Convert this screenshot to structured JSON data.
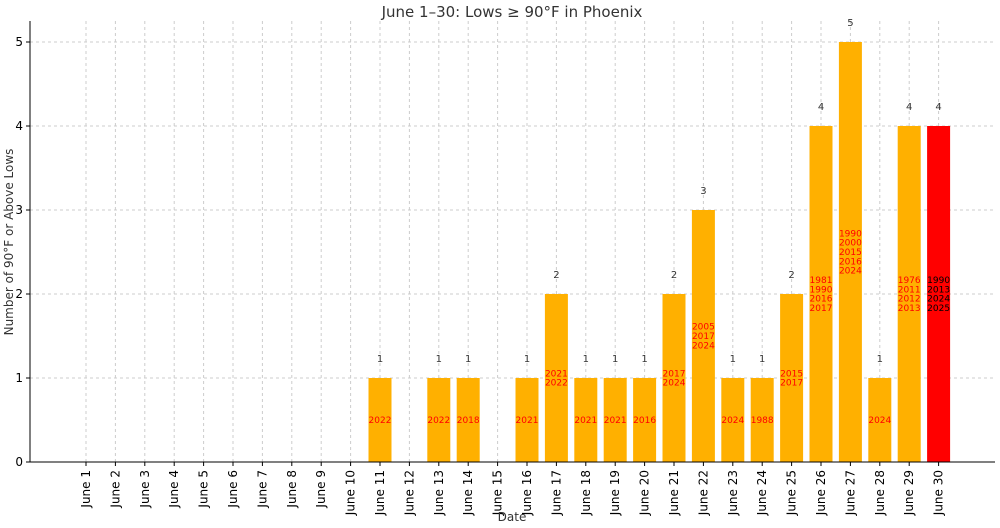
{
  "chart_data": {
    "type": "bar",
    "title": "June 1–30: Lows ≥ 90°F in Phoenix",
    "xlabel": "Date",
    "ylabel": "Number of 90°F or Above Lows",
    "ylim": [
      0,
      5.25
    ],
    "yticks": [
      0,
      1,
      2,
      3,
      4,
      5
    ],
    "grid": true,
    "categories": [
      "June 1",
      "June 2",
      "June 3",
      "June 4",
      "June 5",
      "June 6",
      "June 7",
      "June 8",
      "June 9",
      "June 10",
      "June 11",
      "June 12",
      "June 13",
      "June 14",
      "June 15",
      "June 16",
      "June 17",
      "June 18",
      "June 19",
      "June 20",
      "June 21",
      "June 22",
      "June 23",
      "June 24",
      "June 25",
      "June 26",
      "June 27",
      "June 28",
      "June 29",
      "June 30"
    ],
    "values": [
      0,
      0,
      0,
      0,
      0,
      0,
      0,
      0,
      0,
      0,
      1,
      0,
      1,
      1,
      0,
      1,
      2,
      1,
      1,
      1,
      2,
      3,
      1,
      1,
      2,
      4,
      5,
      1,
      4,
      4
    ],
    "value_labels": [
      "",
      "",
      "",
      "",
      "",
      "",
      "",
      "",
      "",
      "",
      "1",
      "",
      "1",
      "1",
      "",
      "1",
      "2",
      "1",
      "1",
      "1",
      "2",
      "3",
      "1",
      "1",
      "2",
      "4",
      "5",
      "1",
      "4",
      "4"
    ],
    "years": [
      [],
      [],
      [],
      [],
      [],
      [],
      [],
      [],
      [],
      [],
      [
        "2022"
      ],
      [],
      [
        "2022"
      ],
      [
        "2018"
      ],
      [],
      [
        "2021"
      ],
      [
        "2021",
        "2022"
      ],
      [
        "2021"
      ],
      [
        "2021"
      ],
      [
        "2016"
      ],
      [
        "2017",
        "2024"
      ],
      [
        "2005",
        "2017",
        "2024"
      ],
      [
        "2024"
      ],
      [
        "1988"
      ],
      [
        "2015",
        "2017"
      ],
      [
        "1981",
        "1990",
        "2016",
        "2017"
      ],
      [
        "1990",
        "2000",
        "2015",
        "2016",
        "2024"
      ],
      [
        "2024"
      ],
      [
        "1976",
        "2011",
        "2012",
        "2013"
      ],
      [
        "1990",
        "2013",
        "2024",
        "2025"
      ]
    ],
    "colors": {
      "bar": "#FFB000",
      "highlight_bar": "#FF0000",
      "year_text": "#FF0000",
      "highlight_year_text": "#000000"
    },
    "highlight_category": "June 30"
  }
}
